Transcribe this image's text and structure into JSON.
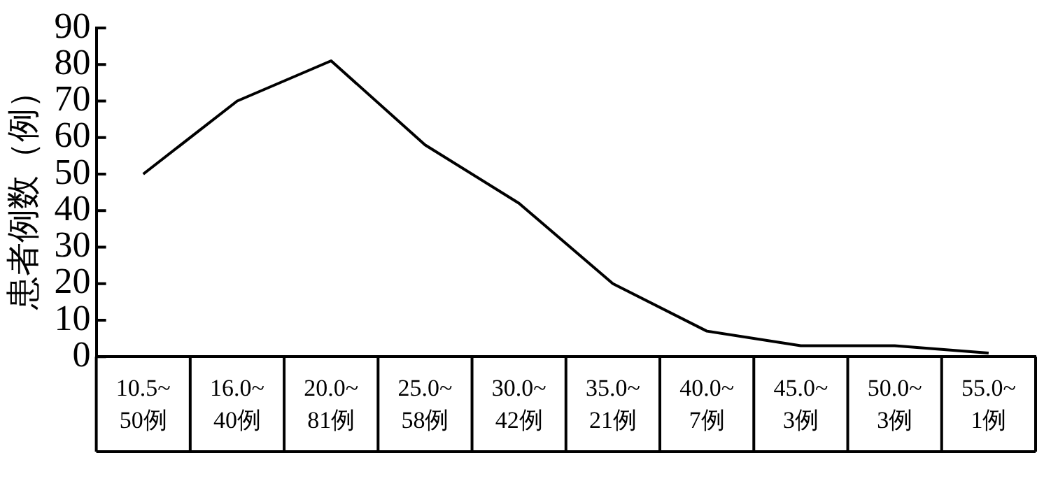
{
  "chart_data": {
    "type": "line",
    "ylabel": "患者例数（例）",
    "categories": [
      "10.5~\n50例",
      "16.0~\n40例",
      "20.0~\n81例",
      "25.0~\n58例",
      "30.0~\n42例",
      "35.0~\n21例",
      "40.0~\n7例",
      "45.0~\n3例",
      "50.0~\n3例",
      "55.0~\n1例"
    ],
    "series": [
      {
        "color": "#000000",
        "values": [
          50,
          70,
          81,
          58,
          42,
          20,
          7,
          3,
          3,
          1
        ]
      }
    ],
    "ylim": [
      0,
      90
    ],
    "yticks": [
      0,
      10,
      20,
      30,
      40,
      50,
      60,
      70,
      80,
      90
    ],
    "grid": false,
    "legend": false,
    "marker": "none",
    "line_style": "solid"
  }
}
